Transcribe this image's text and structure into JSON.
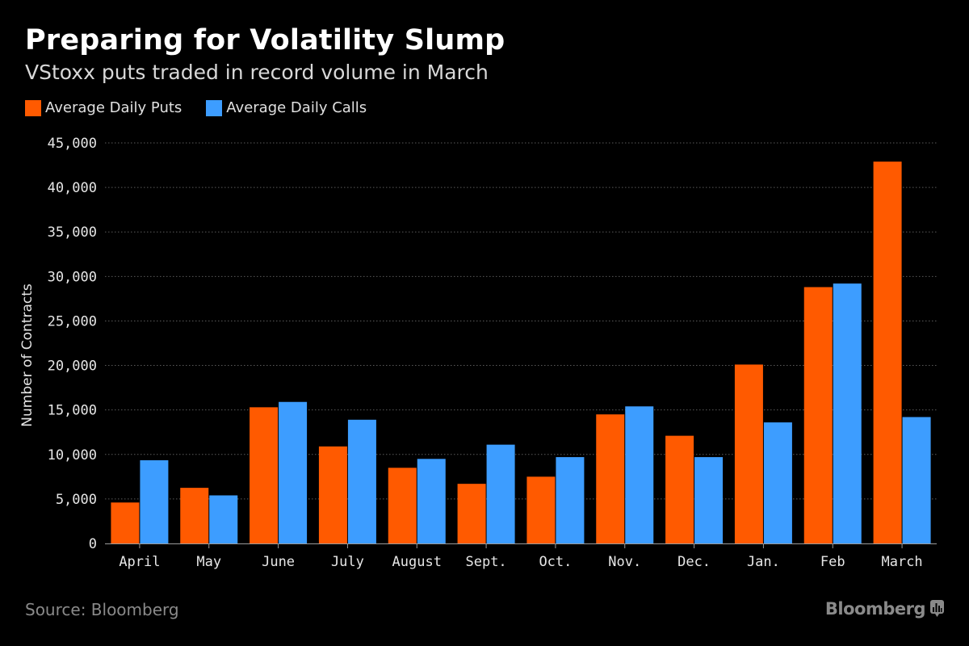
{
  "header": {
    "title": "Preparing for Volatility Slump",
    "subtitle": "VStoxx puts traded in record volume in March"
  },
  "footer": {
    "source": "Source: Bloomberg",
    "brand": "Bloomberg",
    "brand_icon": "bloomberg-chat-icon"
  },
  "chart_data": {
    "type": "bar",
    "title": "Preparing for Volatility Slump",
    "subtitle": "VStoxx puts traded in record volume in March",
    "xlabel": "",
    "ylabel": "Number of Contracts",
    "ylim": [
      0,
      45000
    ],
    "yticks": [
      0,
      5000,
      10000,
      15000,
      20000,
      25000,
      30000,
      35000,
      40000,
      45000
    ],
    "ytick_labels": [
      "0",
      "5,000",
      "10,000",
      "15,000",
      "20,000",
      "25,000",
      "30,000",
      "35,000",
      "40,000",
      "45,000"
    ],
    "grid": true,
    "legend_position": "top-left",
    "categories": [
      "April",
      "May",
      "June",
      "July",
      "August",
      "Sept.",
      "Oct.",
      "Nov.",
      "Dec.",
      "Jan.",
      "Feb",
      "March"
    ],
    "series": [
      {
        "name": "Average Daily Puts",
        "color": "#ff5a00",
        "values": [
          4600,
          6250,
          15300,
          10900,
          8500,
          6700,
          7500,
          14500,
          12100,
          20100,
          28800,
          42900
        ]
      },
      {
        "name": "Average Daily Calls",
        "color": "#3d9dff",
        "values": [
          9350,
          5400,
          15900,
          13900,
          9500,
          11100,
          9700,
          15400,
          9700,
          13600,
          29200,
          14200
        ]
      }
    ]
  }
}
